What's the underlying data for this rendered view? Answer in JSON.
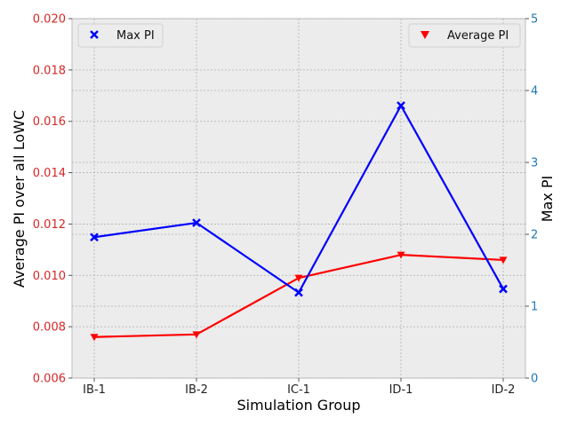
{
  "chart_data": {
    "type": "line",
    "title": "",
    "xlabel": "Simulation Group",
    "ylabel_left": "Average PI over all LoWC",
    "ylabel_right": "Max PI",
    "categories": [
      "IB-1",
      "IB-2",
      "IC-1",
      "ID-1",
      "ID-2"
    ],
    "ylim_left": [
      0.006,
      0.02
    ],
    "ylim_right": [
      0,
      5
    ],
    "yticks_left": [
      "0.006",
      "0.008",
      "0.010",
      "0.012",
      "0.014",
      "0.016",
      "0.018",
      "0.020"
    ],
    "yticks_right": [
      "0",
      "1",
      "2",
      "3",
      "4",
      "5"
    ],
    "grid": true,
    "series": [
      {
        "name": "Average PI",
        "axis": "left",
        "values": [
          0.0076,
          0.0077,
          0.0099,
          0.0108,
          0.0106
        ],
        "color": "#ff0000",
        "marker": "triangle-down",
        "legend_position": "upper-right"
      },
      {
        "name": "Max PI",
        "axis": "right",
        "values": [
          1.96,
          2.16,
          1.19,
          3.79,
          1.24
        ],
        "color": "#0000ff",
        "marker": "x",
        "legend_position": "upper-left"
      }
    ],
    "colors": {
      "left_axis_ticks": "#d62728",
      "right_axis_ticks": "#1f77b4",
      "plot_background": "#ececec",
      "grid": "#b0b0b0"
    }
  }
}
